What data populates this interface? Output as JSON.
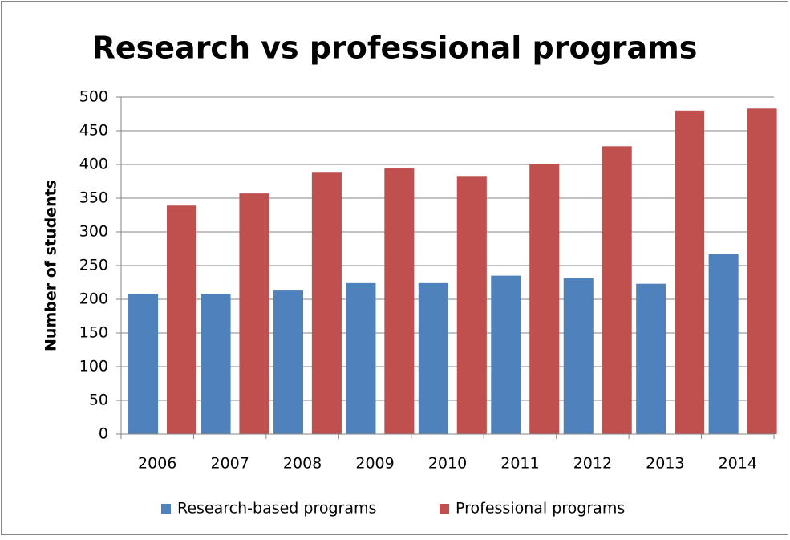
{
  "chart_data": {
    "type": "bar",
    "title": "Research vs professional programs",
    "y_label": "Number of students",
    "categories": [
      "2006",
      "2007",
      "2008",
      "2009",
      "2010",
      "2011",
      "2012",
      "2013",
      "2014"
    ],
    "series": [
      {
        "name": "Research-based programs",
        "color": "#4f81bd",
        "values": [
          208,
          208,
          213,
          224,
          224,
          235,
          231,
          223,
          267
        ]
      },
      {
        "name": "Professional programs",
        "color": "#c0504d",
        "values": [
          339,
          357,
          389,
          394,
          383,
          401,
          427,
          480,
          483
        ]
      }
    ],
    "ylim": [
      0,
      500
    ],
    "yticks": [
      0,
      50,
      100,
      150,
      200,
      250,
      300,
      350,
      400,
      450,
      500
    ],
    "grid": true,
    "legend": "bottom"
  }
}
